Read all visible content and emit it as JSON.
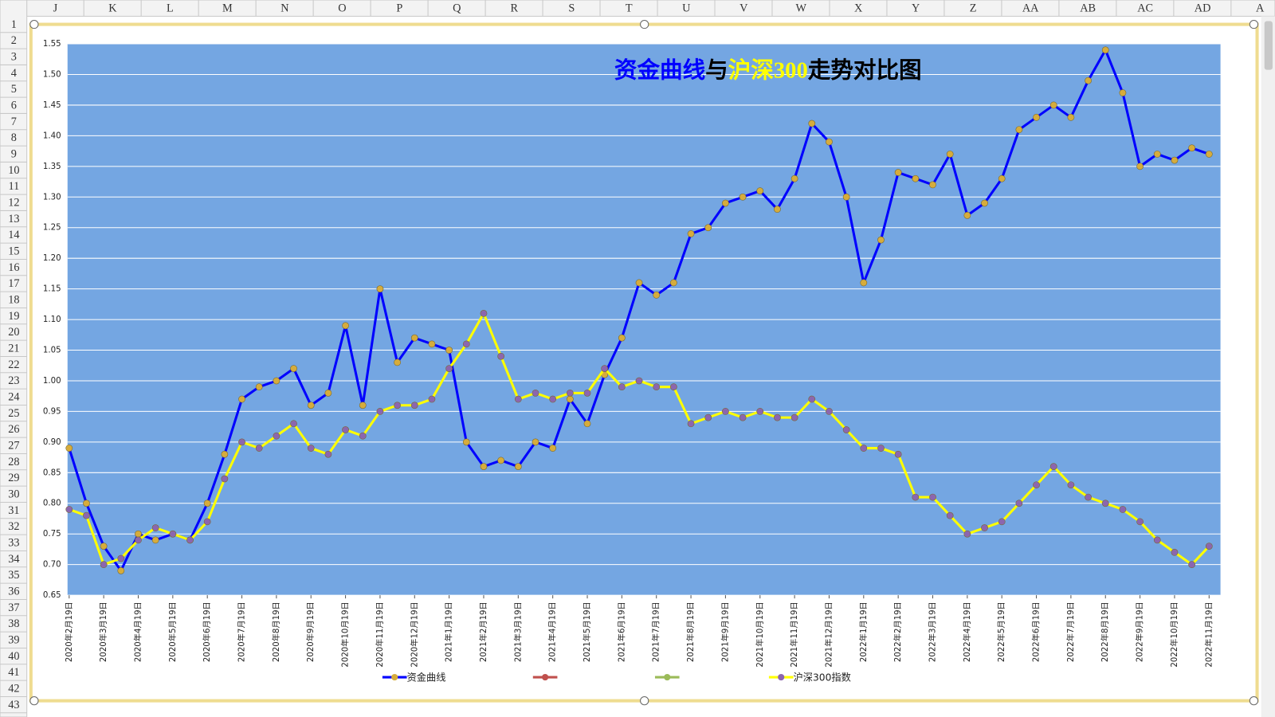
{
  "columns": [
    "J",
    "K",
    "L",
    "M",
    "N",
    "O",
    "P",
    "Q",
    "R",
    "S",
    "T",
    "U",
    "V",
    "W",
    "X",
    "Y",
    "Z",
    "AA",
    "AB",
    "AC",
    "AD",
    "A"
  ],
  "rows": [
    1,
    2,
    3,
    4,
    5,
    6,
    7,
    8,
    9,
    10,
    11,
    12,
    13,
    14,
    15,
    16,
    17,
    18,
    19,
    20,
    21,
    22,
    23,
    24,
    25,
    26,
    27,
    28,
    29,
    30,
    31,
    32,
    33,
    34,
    35,
    36,
    37,
    38,
    39,
    40,
    41,
    42,
    43
  ],
  "chart_data": {
    "type": "line",
    "title": [
      "资金曲线",
      "与",
      "沪深300",
      "走势对比图"
    ],
    "title_colors": [
      "#0000ff",
      "#000000",
      "#ffff00",
      "#000000"
    ],
    "categories": [
      "2020年2月19日",
      null,
      "2020年3月19日",
      null,
      "2020年4月19日",
      null,
      "2020年5月19日",
      null,
      "2020年6月19日",
      null,
      "2020年7月19日",
      null,
      "2020年8月19日",
      null,
      "2020年9月19日",
      null,
      "2020年10月19日",
      null,
      "2020年11月19日",
      null,
      "2020年12月19日",
      null,
      "2021年1月19日",
      null,
      "2021年2月19日",
      null,
      "2021年3月19日",
      null,
      "2021年4月19日",
      null,
      "2021年5月19日",
      null,
      "2021年6月19日",
      null,
      "2021年7月19日",
      null,
      "2021年8月19日",
      null,
      "2021年9月19日",
      null,
      "2021年10月19日",
      null,
      "2021年11月19日",
      null,
      "2021年12月19日",
      null,
      "2022年1月19日",
      null,
      "2022年2月19日",
      null,
      "2022年3月19日",
      null,
      "2022年4月19日",
      null,
      "2022年5月19日",
      null,
      "2022年6月19日",
      null,
      "2022年7月19日",
      null,
      "2022年8月19日",
      null,
      "2022年9月19日",
      null,
      "2022年10月19日",
      null,
      "2022年11月19日"
    ],
    "series": [
      {
        "name": "资金曲线",
        "color": "#0000ff",
        "marker_color": "#d6ac3c",
        "values": [
          0.89,
          0.8,
          0.73,
          0.69,
          0.75,
          0.74,
          0.75,
          0.74,
          0.8,
          0.88,
          0.97,
          0.99,
          1.0,
          1.02,
          0.96,
          0.98,
          1.09,
          0.96,
          1.15,
          1.03,
          1.07,
          1.06,
          1.05,
          0.9,
          0.86,
          0.87,
          0.86,
          0.9,
          0.89,
          0.97,
          0.93,
          1.01,
          1.07,
          1.16,
          1.14,
          1.16,
          1.24,
          1.25,
          1.29,
          1.3,
          1.31,
          1.28,
          1.33,
          1.42,
          1.39,
          1.3,
          1.16,
          1.23,
          1.34,
          1.33,
          1.32,
          1.37,
          1.27,
          1.29,
          1.33,
          1.41,
          1.43,
          1.45,
          1.43,
          1.49,
          1.54,
          1.47,
          1.35,
          1.37,
          1.36,
          1.38,
          1.37
        ]
      },
      {
        "name": "沪深300指数",
        "color": "#ffff00",
        "marker_color": "#8c66ae",
        "values": [
          0.79,
          0.78,
          0.7,
          0.71,
          0.74,
          0.76,
          0.75,
          0.74,
          0.77,
          0.84,
          0.9,
          0.89,
          0.91,
          0.93,
          0.89,
          0.88,
          0.92,
          0.91,
          0.95,
          0.96,
          0.96,
          0.97,
          1.02,
          1.06,
          1.11,
          1.04,
          0.97,
          0.98,
          0.97,
          0.98,
          0.98,
          1.02,
          0.99,
          1.0,
          0.99,
          0.99,
          0.93,
          0.94,
          0.95,
          0.94,
          0.95,
          0.94,
          0.94,
          0.97,
          0.95,
          0.92,
          0.89,
          0.89,
          0.88,
          0.81,
          0.81,
          0.78,
          0.75,
          0.76,
          0.77,
          0.8,
          0.83,
          0.86,
          0.83,
          0.81,
          0.8,
          0.79,
          0.77,
          0.74,
          0.72,
          0.7,
          0.73
        ]
      }
    ],
    "ylim": [
      0.65,
      1.55
    ],
    "yticks": [
      0.65,
      {
        "value": 0.7,
        "label": "0.70"
      },
      0.75,
      {
        "value": 0.8,
        "label": "0.80"
      },
      0.85,
      {
        "value": 0.9,
        "label": "0.90"
      },
      0.95,
      {
        "value": 1,
        "label": "1.00"
      },
      1.05,
      {
        "value": 1.1,
        "label": "1.10"
      },
      1.15,
      {
        "value": 1.2,
        "label": "1.20"
      },
      1.25,
      {
        "value": 1.3,
        "label": "1.30"
      },
      1.35,
      {
        "value": 1.4,
        "label": "1.40"
      },
      1.45,
      {
        "value": 1.5,
        "label": "1.50"
      },
      1.55
    ],
    "grid": true,
    "plot_background": "#74a6e2",
    "legend": "bottom"
  }
}
